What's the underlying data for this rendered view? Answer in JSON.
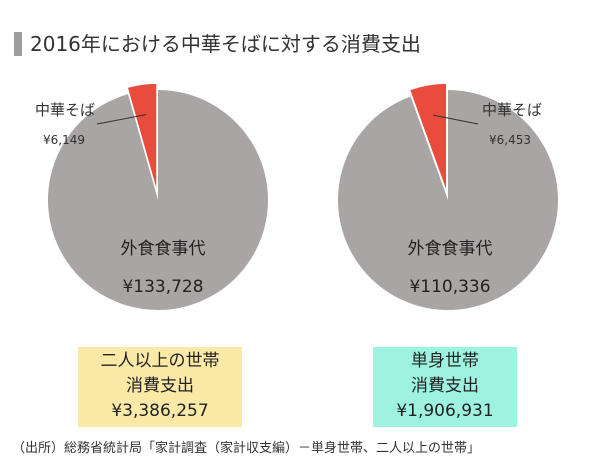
{
  "title": "2016年における中華そばに対する消費支出",
  "colors": {
    "accent_bar": "#a09e9d",
    "slice_main": "#a8a5a4",
    "slice_highlight": "#e94b3c",
    "box_left": "#fbe9a7",
    "box_right": "#9ef3e0"
  },
  "chart_data": [
    {
      "type": "pie",
      "slices": [
        {
          "label": "中華そば",
          "value": 6149,
          "value_label": "¥6,149",
          "color": "#e94b3c"
        },
        {
          "label": "外食食事代",
          "value": 133728,
          "value_label": "¥133,728",
          "color": "#a8a5a4"
        }
      ],
      "household": {
        "type": "二人以上の世帯",
        "metric": "消費支出",
        "amount": "¥3,386,257"
      }
    },
    {
      "type": "pie",
      "slices": [
        {
          "label": "中華そば",
          "value": 6453,
          "value_label": "¥6,453",
          "color": "#e94b3c"
        },
        {
          "label": "外食食事代",
          "value": 110336,
          "value_label": "¥110,336",
          "color": "#a8a5a4"
        }
      ],
      "household": {
        "type": "単身世帯",
        "metric": "消費支出",
        "amount": "¥1,906,931"
      }
    }
  ],
  "source": "（出所）総務省統計局「家計調査（家計収支編）－単身世帯、二人以上の世帯」"
}
